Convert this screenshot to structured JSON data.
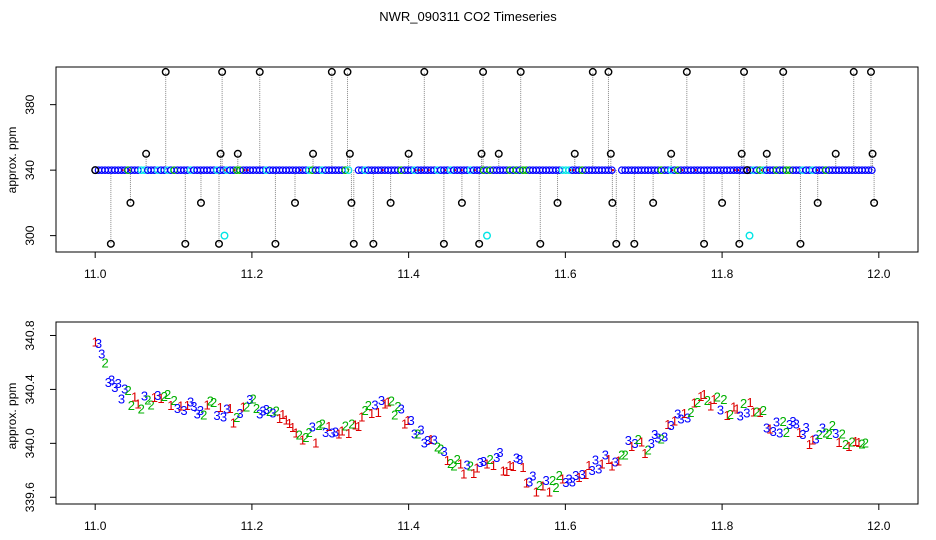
{
  "colors": {
    "black": "#000000",
    "blue": "#0000ff",
    "cyan": "#00e5e5",
    "green": "#00b000",
    "red": "#dd0000",
    "grey": "#888888"
  },
  "chart_data": [
    {
      "type": "scatter",
      "title": "NWR_090311  CO2 Timeseries",
      "ylabel": "approx. ppm",
      "xlim": [
        10.95,
        12.05
      ],
      "ylim": [
        290,
        403
      ],
      "xticks": [
        "11.0",
        "11.2",
        "11.4",
        "11.6",
        "11.8",
        "12.0"
      ],
      "yticks": [
        "300",
        "340",
        "380"
      ],
      "baseline": 340,
      "baseline_x_range": [
        11.0,
        11.995
      ],
      "gaps": [
        11.33,
        11.665
      ],
      "series": [
        {
          "style": "dense-blue-circles",
          "values_note": "",
          "x": [],
          "y": []
        },
        {
          "style": "black-circles",
          "x": [
            11.0,
            11.02,
            11.045,
            11.065,
            11.09,
            11.115,
            11.135,
            11.158,
            11.16,
            11.162,
            11.182,
            11.21,
            11.23,
            11.255,
            11.278,
            11.302,
            11.322,
            11.325,
            11.327,
            11.33,
            11.355,
            11.377,
            11.4,
            11.42,
            11.445,
            11.468,
            11.49,
            11.493,
            11.495,
            11.515,
            11.543,
            11.568,
            11.59,
            11.612,
            11.635,
            11.655,
            11.658,
            11.66,
            11.665,
            11.688,
            11.712,
            11.735,
            11.755,
            11.777,
            11.8,
            11.822,
            11.825,
            11.828,
            11.832,
            11.857,
            11.878,
            11.9,
            11.922,
            11.945,
            11.968,
            11.99,
            11.992,
            11.994
          ],
          "y": [
            340,
            295,
            320,
            350,
            400,
            295,
            320,
            295,
            350,
            400,
            350,
            400,
            295,
            320,
            350,
            400,
            400,
            350,
            320,
            295,
            295,
            320,
            350,
            400,
            295,
            320,
            295,
            350,
            400,
            350,
            400,
            295,
            320,
            350,
            400,
            400,
            350,
            320,
            295,
            295,
            320,
            350,
            400,
            295,
            320,
            295,
            350,
            400,
            340,
            350,
            400,
            295,
            320,
            350,
            400,
            400,
            350,
            320
          ]
        },
        {
          "style": "cyan-circles",
          "x": [
            11.165,
            11.5,
            11.835
          ],
          "y": [
            300,
            300,
            300
          ]
        }
      ]
    },
    {
      "type": "scatter",
      "ylabel": "approx. ppm",
      "xlim": [
        10.95,
        12.05
      ],
      "ylim": [
        339.55,
        340.9
      ],
      "xticks": [
        "11.0",
        "11.2",
        "11.4",
        "11.6",
        "11.8",
        "12.0"
      ],
      "yticks": [
        "339.6",
        "340.0",
        "340.4",
        "340.8"
      ],
      "marker_labels": [
        "1",
        "2",
        "3"
      ],
      "trend": {
        "x": [
          11.0,
          11.01,
          11.02,
          11.04,
          11.06,
          11.08,
          11.1,
          11.12,
          11.14,
          11.16,
          11.18,
          11.2,
          11.22,
          11.24,
          11.26,
          11.28,
          11.3,
          11.32,
          11.34,
          11.36,
          11.38,
          11.4,
          11.42,
          11.44,
          11.46,
          11.48,
          11.5,
          11.52,
          11.54,
          11.56,
          11.58,
          11.6,
          11.62,
          11.64,
          11.66,
          11.68,
          11.7,
          11.72,
          11.74,
          11.76,
          11.78,
          11.8,
          11.82,
          11.84,
          11.86,
          11.88,
          11.9,
          11.92,
          11.94,
          11.96,
          11.98
        ],
        "y": [
          340.75,
          340.6,
          340.45,
          340.35,
          340.3,
          340.33,
          340.3,
          340.28,
          340.25,
          340.27,
          340.2,
          340.28,
          340.26,
          340.18,
          340.1,
          340.08,
          340.1,
          340.12,
          340.2,
          340.3,
          340.27,
          340.18,
          340.05,
          339.98,
          339.85,
          339.78,
          339.85,
          339.88,
          339.85,
          339.72,
          339.7,
          339.75,
          339.8,
          339.85,
          339.9,
          339.98,
          340.0,
          340.05,
          340.15,
          340.25,
          340.35,
          340.3,
          340.25,
          340.3,
          340.15,
          340.12,
          340.1,
          340.05,
          340.08,
          340.0,
          339.98
        ]
      }
    }
  ]
}
